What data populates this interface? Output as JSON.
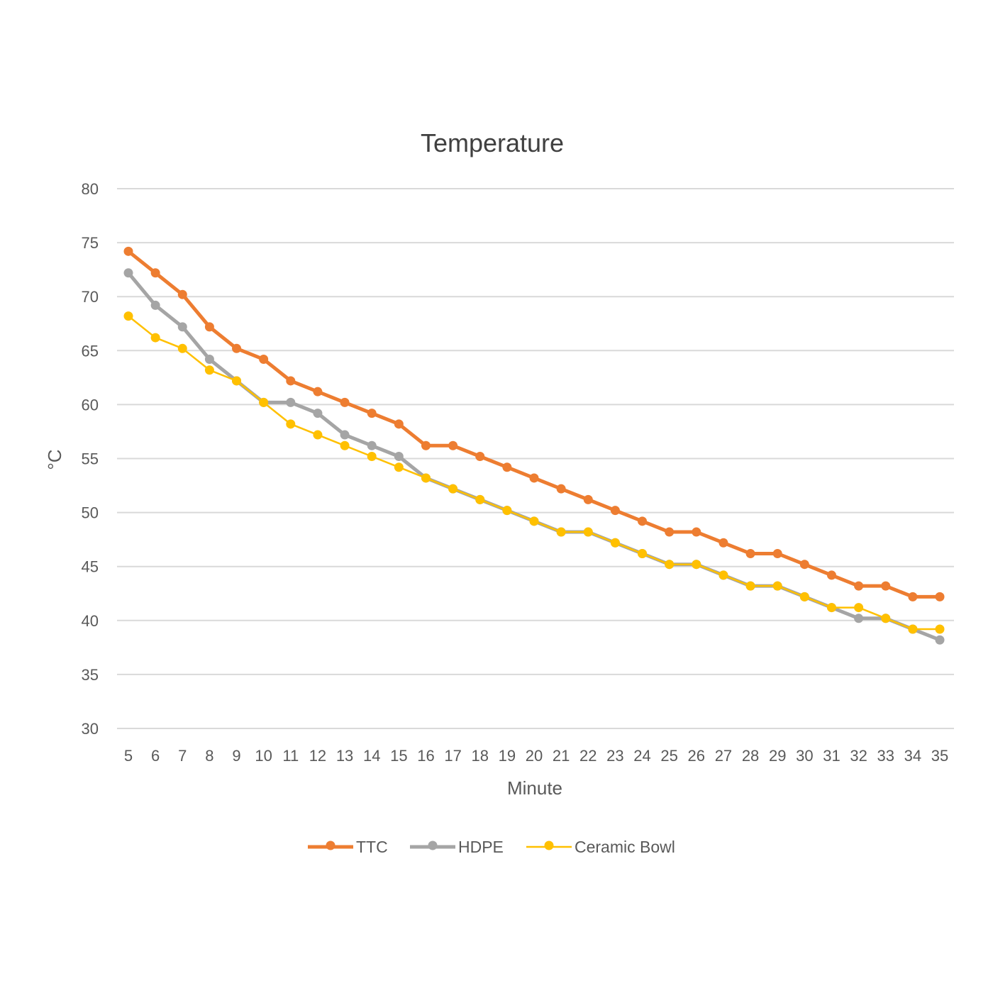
{
  "chart_data": {
    "type": "line",
    "title": "Temperature",
    "xlabel": "Minute",
    "ylabel": "°C",
    "ylim": [
      30,
      80
    ],
    "yticks": [
      30,
      35,
      40,
      45,
      50,
      55,
      60,
      65,
      70,
      75,
      80
    ],
    "grid": true,
    "legend_position": "bottom",
    "x": [
      5,
      6,
      7,
      8,
      9,
      10,
      11,
      12,
      13,
      14,
      15,
      16,
      17,
      18,
      19,
      20,
      21,
      22,
      23,
      24,
      25,
      26,
      27,
      28,
      29,
      30,
      31,
      32,
      33,
      34,
      35
    ],
    "series": [
      {
        "name": "TTC",
        "color": "#ED7D31",
        "values": [
          74,
          72,
          70,
          67,
          65,
          64,
          62,
          61,
          60,
          59,
          58,
          56,
          56,
          55,
          54,
          53,
          52,
          51,
          50,
          49,
          48,
          48,
          47,
          46,
          46,
          45,
          44,
          43,
          43,
          42,
          42
        ]
      },
      {
        "name": "HDPE",
        "color": "#A5A5A5",
        "values": [
          72,
          69,
          67,
          64,
          62,
          60,
          60,
          59,
          57,
          56,
          55,
          53,
          52,
          51,
          50,
          49,
          48,
          48,
          47,
          46,
          45,
          45,
          44,
          43,
          43,
          42,
          41,
          40,
          40,
          39,
          38
        ]
      },
      {
        "name": "Ceramic Bowl",
        "color": "#FFC000",
        "values": [
          68,
          66,
          65,
          63,
          62,
          60,
          58,
          57,
          56,
          55,
          54,
          53,
          52,
          51,
          50,
          49,
          48,
          48,
          47,
          46,
          45,
          45,
          44,
          43,
          43,
          42,
          41,
          41,
          40,
          39,
          39
        ]
      }
    ]
  }
}
